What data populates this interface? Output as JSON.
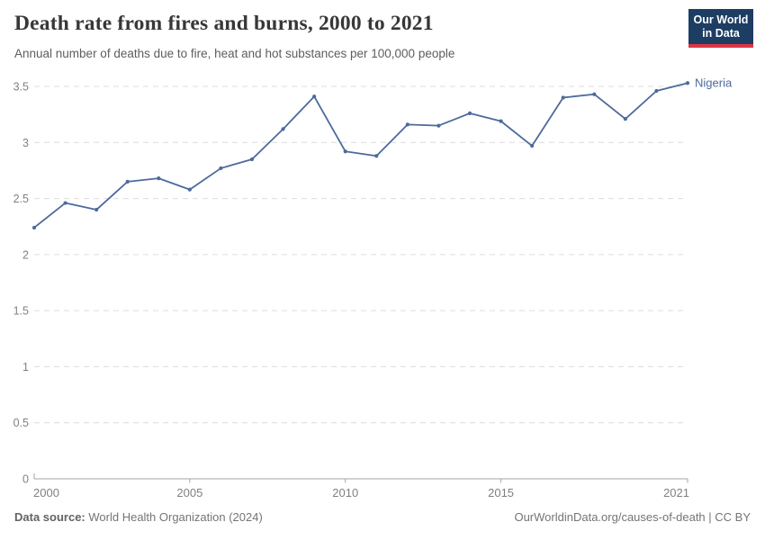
{
  "header": {
    "title": "Death rate from fires and burns, 2000 to 2021",
    "subtitle": "Annual number of deaths due to fire, heat and hot substances per 100,000 people",
    "logo": {
      "line1": "Our World",
      "line2": "in Data"
    }
  },
  "footer": {
    "source_label": "Data source:",
    "source_value": "World Health Organization (2024)",
    "attribution": "OurWorldinData.org/causes-of-death | CC BY"
  },
  "colors": {
    "series": "#4C6A9C",
    "logo_bg": "#1d3d63",
    "logo_stripe": "#dc3545",
    "gridline": "#dcdcdc",
    "axis": "#a6a6a6",
    "tick_text": "#808080",
    "title_text": "#373737",
    "subtitle_text": "#5d5d5d"
  },
  "chart_data": {
    "type": "line",
    "title": "Death rate from fires and burns, 2000 to 2021",
    "subtitle": "Annual number of deaths due to fire, heat and hot substances per 100,000 people",
    "xlabel": "",
    "ylabel": "",
    "x": [
      2000,
      2001,
      2002,
      2003,
      2004,
      2005,
      2006,
      2007,
      2008,
      2009,
      2010,
      2011,
      2012,
      2013,
      2014,
      2015,
      2016,
      2017,
      2018,
      2019,
      2020,
      2021
    ],
    "series": [
      {
        "name": "Nigeria",
        "color": "#4C6A9C",
        "values": [
          2.24,
          2.46,
          2.4,
          2.65,
          2.68,
          2.58,
          2.77,
          2.85,
          3.12,
          3.41,
          2.92,
          2.88,
          3.16,
          3.15,
          3.26,
          3.19,
          2.97,
          3.4,
          3.43,
          3.21,
          3.46,
          3.53
        ]
      }
    ],
    "xlim": [
      2000,
      2021
    ],
    "ylim": [
      0,
      3.5
    ],
    "xticks": [
      2000,
      2005,
      2010,
      2015,
      2021
    ],
    "yticks": [
      0,
      0.5,
      1,
      1.5,
      2,
      2.5,
      3,
      3.5
    ],
    "grid": "horizontal-dashed",
    "legend_position": "line-end-label",
    "markers": true
  }
}
